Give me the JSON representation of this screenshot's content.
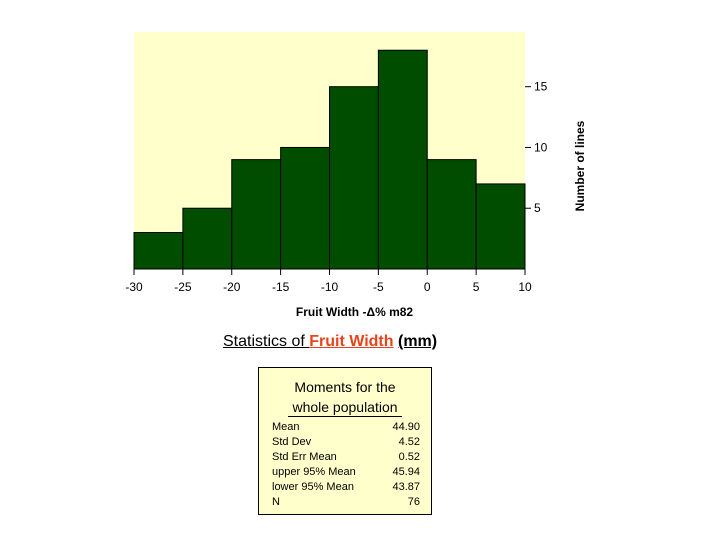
{
  "chart_data": {
    "type": "bar",
    "title": "",
    "xlabel": "Fruit Width -Δ% m82",
    "ylabel": "Number of lines",
    "bins": [
      {
        "from": -30,
        "to": -25,
        "count": 3
      },
      {
        "from": -25,
        "to": -20,
        "count": 5
      },
      {
        "from": -20,
        "to": -15,
        "count": 9
      },
      {
        "from": -15,
        "to": -10,
        "count": 10
      },
      {
        "from": -10,
        "to": -5,
        "count": 15
      },
      {
        "from": -5,
        "to": 0,
        "count": 18
      },
      {
        "from": 0,
        "to": 5,
        "count": 9
      },
      {
        "from": 5,
        "to": 10,
        "count": 7
      }
    ],
    "xlim": [
      -30,
      10
    ],
    "ylim": [
      0,
      19.5
    ],
    "x_ticks": [
      "-30",
      "-25",
      "-20",
      "-15",
      "-10",
      "-5",
      "0",
      "5",
      "10"
    ],
    "y_ticks": [
      "5",
      "10",
      "15"
    ],
    "y_axis_side": "right",
    "colors": {
      "bar": "#004d00",
      "background": "#ffffcc"
    }
  },
  "stats": {
    "heading_prefix": "Statistics of ",
    "variable": "Fruit Width",
    "unit": "(mm)",
    "box_title_line1": "Moments for the",
    "box_title_line2": "whole population",
    "rows": [
      {
        "label": "Mean",
        "value": "44.90"
      },
      {
        "label": "Std Dev",
        "value": "4.52"
      },
      {
        "label": "Std Err Mean",
        "value": "0.52"
      },
      {
        "label": "upper 95% Mean",
        "value": "45.94"
      },
      {
        "label": "lower 95% Mean",
        "value": "43.87"
      },
      {
        "label": "N",
        "value": "76"
      }
    ]
  }
}
